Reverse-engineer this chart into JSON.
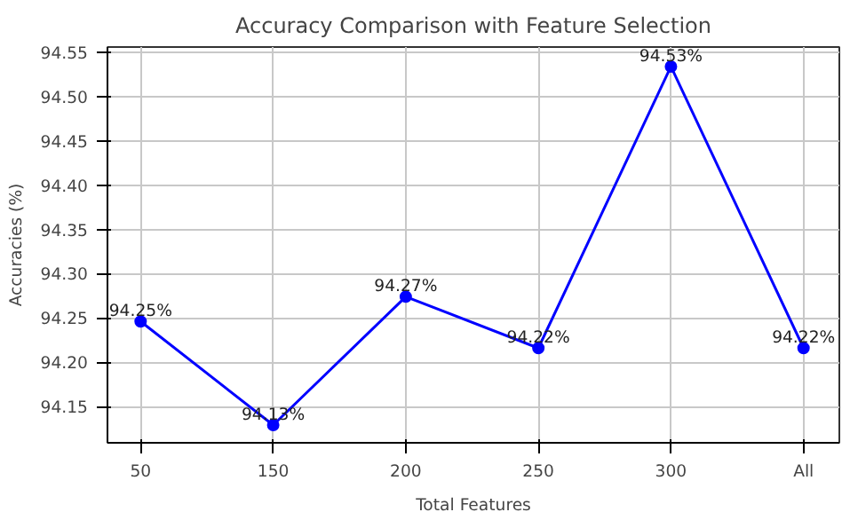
{
  "chart_data": {
    "type": "line",
    "title": "Accuracy Comparison with Feature Selection",
    "xlabel": "Total Features",
    "ylabel": "Accuracies (%)",
    "categories": [
      "50",
      "150",
      "200",
      "250",
      "300",
      "All"
    ],
    "series": [
      {
        "color": "#0000ff",
        "values": [
          94.246,
          94.129,
          94.274,
          94.216,
          94.534,
          94.216
        ],
        "value_labels": [
          "94.25%",
          "94.13%",
          "94.27%",
          "94.22%",
          "94.53%",
          "94.22%"
        ]
      }
    ],
    "ylim": [
      94.109,
      94.556
    ],
    "yticks": [
      {
        "value": 94.15,
        "label": "94.15"
      },
      {
        "value": 94.2,
        "label": "94.20"
      },
      {
        "value": 94.25,
        "label": "94.25"
      },
      {
        "value": 94.3,
        "label": "94.30"
      },
      {
        "value": 94.35,
        "label": "94.35"
      },
      {
        "value": 94.4,
        "label": "94.40"
      },
      {
        "value": 94.45,
        "label": "94.45"
      },
      {
        "value": 94.5,
        "label": "94.50"
      },
      {
        "value": 94.55,
        "label": "94.55"
      }
    ],
    "grid": true,
    "marker": "circle",
    "line_style": "solid"
  }
}
